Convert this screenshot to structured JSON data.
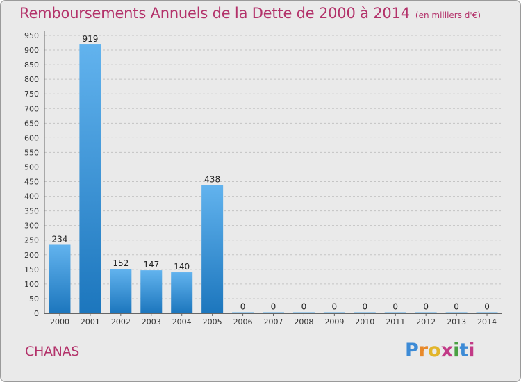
{
  "title": "Remboursements Annuels de la Dette de 2000 à 2014",
  "unit_note": "(en milliers d'€)",
  "commune": "CHANAS",
  "logo_text": "Proxiti",
  "colors": {
    "title": "#b3326a",
    "bar_top": "#62b3ee",
    "bar_bottom": "#1c76bd",
    "background": "#eaeaea"
  },
  "chart_data": {
    "type": "bar",
    "title": "Remboursements Annuels de la Dette de 2000 à 2014",
    "xlabel": "",
    "ylabel": "",
    "ylim": [
      0,
      950
    ],
    "yticks": [
      0,
      50,
      100,
      150,
      200,
      250,
      300,
      350,
      400,
      450,
      500,
      550,
      600,
      650,
      700,
      750,
      800,
      850,
      900,
      950
    ],
    "categories": [
      "2000",
      "2001",
      "2002",
      "2003",
      "2004",
      "2005",
      "2006",
      "2007",
      "2008",
      "2009",
      "2010",
      "2011",
      "2012",
      "2013",
      "2014"
    ],
    "values": [
      234,
      919,
      152,
      147,
      140,
      438,
      0,
      0,
      0,
      0,
      0,
      0,
      0,
      0,
      0
    ],
    "grid": true,
    "data_labels": true
  }
}
